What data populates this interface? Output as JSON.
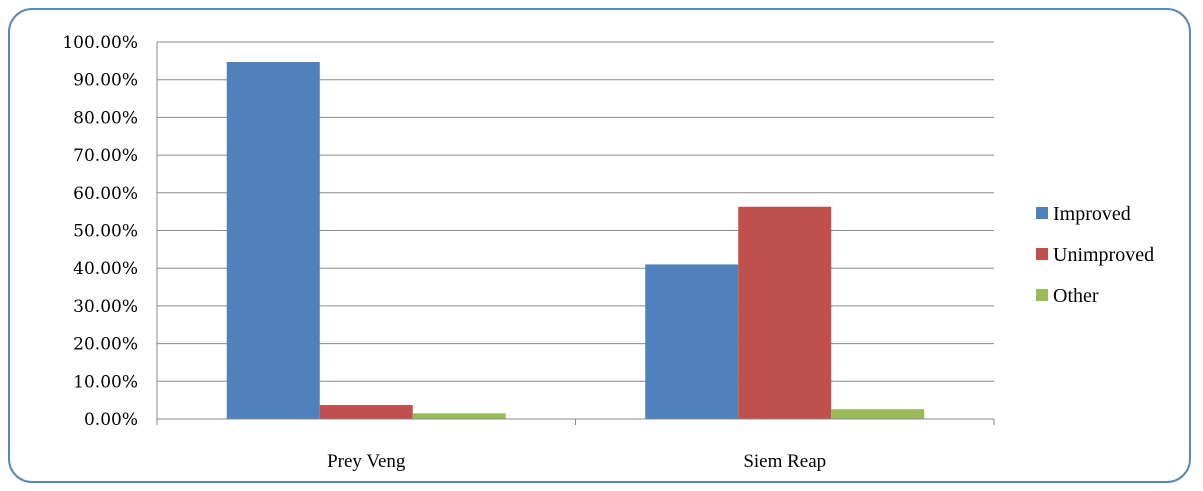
{
  "chart_data": {
    "type": "bar",
    "categories": [
      "Prey Veng",
      "Siem Reap"
    ],
    "series": [
      {
        "name": "Improved",
        "values": [
          0.947,
          0.41
        ],
        "color": "#4f81bd"
      },
      {
        "name": "Unimproved",
        "values": [
          0.037,
          0.563
        ],
        "color": "#c0504d"
      },
      {
        "name": "Other",
        "values": [
          0.015,
          0.026
        ],
        "color": "#9bbb59"
      }
    ],
    "ylim": [
      0,
      1
    ],
    "yticks": [
      0,
      0.1,
      0.2,
      0.3,
      0.4,
      0.5,
      0.6,
      0.7,
      0.8,
      0.9,
      1.0
    ],
    "ytick_labels": [
      "0.00%",
      "10.00%",
      "20.00%",
      "30.00%",
      "40.00%",
      "50.00%",
      "60.00%",
      "70.00%",
      "80.00%",
      "90.00%",
      "100.00%"
    ],
    "grid": true,
    "legend_position": "right",
    "title": "",
    "xlabel": "",
    "ylabel": ""
  }
}
